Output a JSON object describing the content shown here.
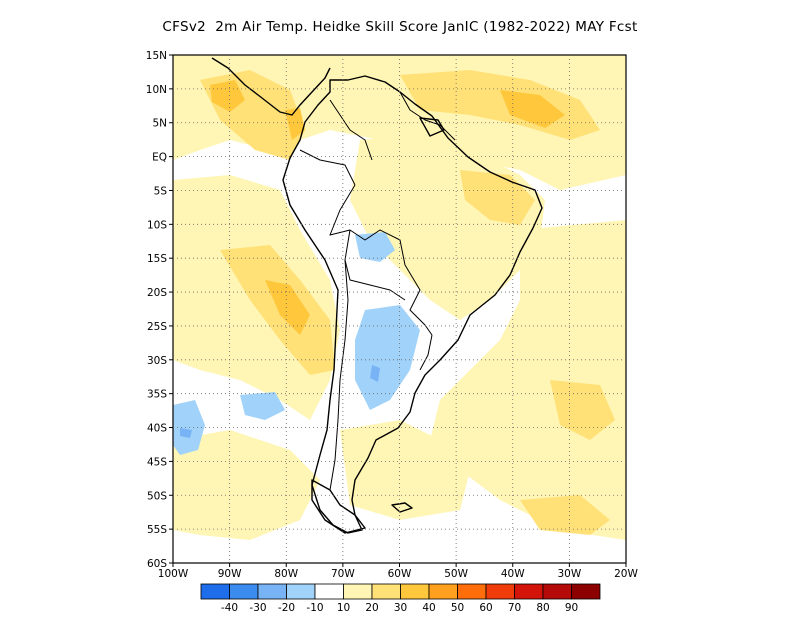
{
  "title": "CFSv2  2m Air Temp. Heidke Skill Score JanIC (1982-2022) MAY Fcst",
  "map": {
    "region": "South America",
    "lon_range": [
      -100,
      -20
    ],
    "lat_range": [
      -60,
      15
    ],
    "lat_labels": [
      "15N",
      "10N",
      "5N",
      "EQ",
      "5S",
      "10S",
      "15S",
      "20S",
      "25S",
      "30S",
      "35S",
      "40S",
      "45S",
      "50S",
      "55S",
      "60S"
    ],
    "lon_labels": [
      "100W",
      "90W",
      "80W",
      "70W",
      "60W",
      "50W",
      "40W",
      "30W",
      "20W"
    ]
  },
  "colorbar": {
    "labels": [
      "-40",
      "-30",
      "-20",
      "-10",
      "10",
      "20",
      "30",
      "40",
      "50",
      "60",
      "70",
      "80",
      "90"
    ],
    "colors": [
      "#1e6eeb",
      "#3c8cf0",
      "#78b4f5",
      "#a0d2fa",
      "#ffffff",
      "#fff5b4",
      "#ffe178",
      "#ffc83c",
      "#ffa01e",
      "#ff6e0a",
      "#f03c0a",
      "#d2140a",
      "#b40a0a",
      "#8c0000"
    ]
  }
}
